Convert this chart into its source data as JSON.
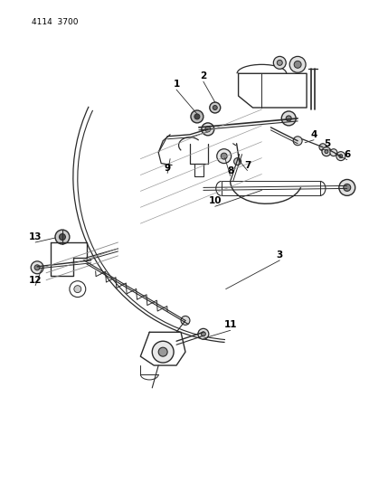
{
  "title_text": "4114  3700",
  "background_color": "#ffffff",
  "line_color": "#2a2a2a",
  "label_color": "#000000",
  "fig_width": 4.08,
  "fig_height": 5.33,
  "dpi": 100,
  "label_bold_fontsize": 7.5
}
